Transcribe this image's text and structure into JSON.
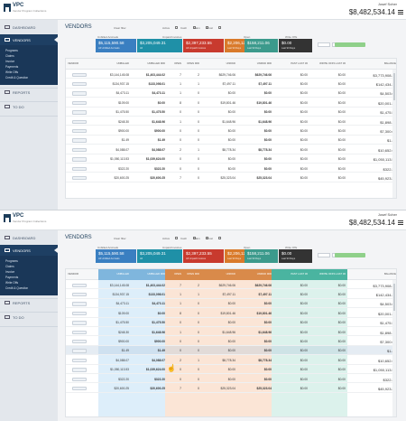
{
  "app": {
    "brand": "VPC",
    "brand_sub": "Vendor Program Collections",
    "user": "Josef Scher",
    "total": "$8,482,534.14"
  },
  "sidebar": {
    "items": [
      {
        "label": "DASHBOARD"
      },
      {
        "label": "VENDORS"
      },
      {
        "label": "REPORTS"
      },
      {
        "label": "TO DO"
      }
    ],
    "subitems": [
      "Programs",
      "Claims",
      "Invoice",
      "Payments",
      "Write Offs",
      "Credit & Question"
    ]
  },
  "page_title": "VENDORS",
  "filters": [
    {
      "label": "Clear filter"
    },
    {
      "label": "Active"
    },
    {
      "label": "Cash"
    },
    {
      "label": "Claim"
    },
    {
      "label": "Ghost"
    }
  ],
  "groups": [
    "Unbilled Accruals",
    "Unpaid Invoices",
    "Open",
    "Write Offs"
  ],
  "cards": [
    {
      "value": "$5,115,590.58",
      "label": "All Unbilled Accruals",
      "color": "#3a7fc1"
    },
    {
      "value": "$3,205,049.31",
      "label": "All",
      "color": "#1f90a7"
    },
    {
      "value": "$2,397,233.55",
      "label": "All Unpaid Invoices",
      "color": "#c83a2e"
    },
    {
      "value": "$2,206,121.01",
      "label": "Last 90 Days",
      "color": "#d97a2b"
    },
    {
      "value": "$158,211.06",
      "label": "Last 90 Days",
      "color": "#3c9a8c"
    },
    {
      "value": "$0.00",
      "label": "Last 90 Days",
      "color": "#333333"
    }
  ],
  "columns": [
    "VENDOR",
    "UNBILLED",
    "UNBILLED 90D",
    "OPEN",
    "OPEN 90D",
    "UNPAID",
    "UNPAID 90D",
    "PAST LAST 30",
    "WRITE OFFS LAST 30",
    "BALANCE"
  ],
  "rows": [
    {
      "unbilled": "$3,144,145.08",
      "unbilled90": "$1,403,444.02",
      "open": "7",
      "open90": "2",
      "unpaid": "$629,746.06",
      "unpaid90": "$629,746.06",
      "past30": "$0.00",
      "wo30": "$0.00",
      "balance": "$3,773,908.20"
    },
    {
      "unbilled": "$134,937.15",
      "unbilled90": "$133,098.01",
      "open": "1",
      "open90": "1",
      "unpaid": "$7,497.11",
      "unpaid90": "$7,497.11",
      "past30": "$0.00",
      "wo30": "$0.00",
      "balance": "$142,434.26"
    },
    {
      "unbilled": "$4,473.11",
      "unbilled90": "$4,473.11",
      "open": "1",
      "open90": "0",
      "unpaid": "$0.00",
      "unpaid90": "$0.00",
      "past30": "$0.00",
      "wo30": "$0.00",
      "balance": "$4,503.01"
    },
    {
      "unbilled": "$109.00",
      "unbilled90": "$0.00",
      "open": "8",
      "open90": "0",
      "unpaid": "$19,801.46",
      "unpaid90": "$19,801.46",
      "past30": "$0.00",
      "wo30": "$0.00",
      "balance": "$20,001.25"
    },
    {
      "unbilled": "$1,475.50",
      "unbilled90": "$1,475.50",
      "open": "0",
      "open90": "0",
      "unpaid": "$0.00",
      "unpaid90": "$0.00",
      "past30": "$0.00",
      "wo30": "$0.00",
      "balance": "$1,475.50"
    },
    {
      "unbilled": "$248.30",
      "unbilled90": "$1,648.96",
      "open": "1",
      "open90": "0",
      "unpaid": "$1,648.96",
      "unpaid90": "$1,648.96",
      "past30": "$0.00",
      "wo30": "$0.00",
      "balance": "$1,898.16"
    },
    {
      "unbilled": "$900.00",
      "unbilled90": "$900.00",
      "open": "0",
      "open90": "0",
      "unpaid": "$0.00",
      "unpaid90": "$0.00",
      "past30": "$0.00",
      "wo30": "$0.00",
      "balance": "$7,300.00"
    },
    {
      "unbilled": "$1.49",
      "unbilled90": "$1.49",
      "open": "0",
      "open90": "0",
      "unpaid": "$0.00",
      "unpaid90": "$0.00",
      "past30": "$0.00",
      "wo30": "$0.00",
      "balance": "$1.49"
    },
    {
      "unbilled": "$4,088.07",
      "unbilled90": "$4,088.07",
      "open": "2",
      "open90": "1",
      "unpaid": "$8,778.34",
      "unpaid90": "$8,778.34",
      "past30": "$0.00",
      "wo30": "$0.00",
      "balance": "$10,652.63"
    },
    {
      "unbilled": "$1,050,113.53",
      "unbilled90": "$1,039,624.00",
      "open": "0",
      "open90": "0",
      "unpaid": "$0.00",
      "unpaid90": "$0.00",
      "past30": "$0.00",
      "wo30": "$0.00",
      "balance": "$1,050,113.53"
    },
    {
      "unbilled": "$322.20",
      "unbilled90": "$322.20",
      "open": "0",
      "open90": "0",
      "unpaid": "$0.00",
      "unpaid90": "$0.00",
      "past30": "$0.00",
      "wo30": "$0.00",
      "balance": "$322.20"
    },
    {
      "unbilled": "$20,600.25",
      "unbilled90": "$20,600.25",
      "open": "7",
      "open90": "0",
      "unpaid": "$25,323.04",
      "unpaid90": "$25,323.04",
      "past30": "$0.00",
      "wo30": "$0.00",
      "balance": "$45,923.29"
    }
  ],
  "colors": {
    "nav_active": "#1e3f63",
    "unbilled_band": "#ddeefa",
    "open_band": "#fbe5d6",
    "past_band": "#dcf2ec"
  }
}
